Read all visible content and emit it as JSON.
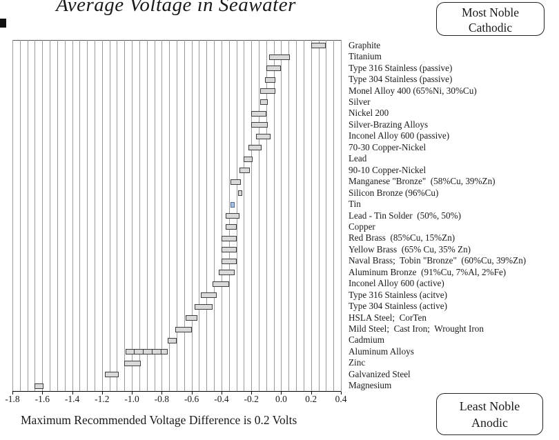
{
  "chart_data": {
    "type": "bar",
    "orientation": "horizontal-range",
    "title": "Average Voltage in Seawater",
    "unit": "Volts",
    "x_axis": {
      "min": -1.8,
      "max": 0.4,
      "grid_step": 0.05,
      "tick_labels": [
        "-1.8",
        "-1.6",
        "-1.4",
        "-1.2",
        "-1.0",
        "-0.8",
        "-0.6",
        "-0.4",
        "-0.2",
        "0.0",
        "0.2",
        "0.4"
      ]
    },
    "colors": {
      "bar_fill": "#d9d9d9",
      "bar_border": "#3c3c3c",
      "highlight_fill": "#a9c0dd",
      "highlight_border": "#4a6a9a",
      "grid": "#9b9b9b",
      "axis": "#000000"
    },
    "bars": [
      {
        "label": "Graphite",
        "range": [
          0.2,
          0.3
        ]
      },
      {
        "label": "Titanium",
        "range": [
          -0.08,
          0.06
        ]
      },
      {
        "label": "Type 316 Stainless (passive)",
        "range": [
          -0.1,
          0.0
        ]
      },
      {
        "label": "Type 304 Stainless (passive)",
        "range": [
          -0.11,
          -0.04
        ]
      },
      {
        "label": "Monel Alloy 400 (65%Ni, 30%Cu)",
        "range": [
          -0.14,
          -0.04
        ]
      },
      {
        "label": "Silver",
        "range": [
          -0.14,
          -0.09
        ]
      },
      {
        "label": "Nickel 200",
        "range": [
          -0.2,
          -0.1
        ]
      },
      {
        "label": "Silver-Brazing Alloys",
        "range": [
          -0.2,
          -0.09
        ]
      },
      {
        "label": "Inconel Alloy 600 (passive)",
        "range": [
          -0.17,
          -0.07
        ]
      },
      {
        "label": "70-30 Copper-Nickel",
        "range": [
          -0.22,
          -0.13
        ]
      },
      {
        "label": "Lead",
        "range": [
          -0.25,
          -0.19
        ]
      },
      {
        "label": "90-10 Copper-Nickel",
        "range": [
          -0.28,
          -0.21
        ]
      },
      {
        "label": "Manganese \"Bronze\"  (58%Cu, 39%Zn)",
        "range": [
          -0.34,
          -0.27
        ]
      },
      {
        "label": "Silicon Bronze (96%Cu)",
        "range": [
          -0.29,
          -0.26
        ]
      },
      {
        "label": "Tin",
        "range": [
          -0.34,
          -0.31
        ],
        "highlighted": true
      },
      {
        "label": "Lead - Tin Solder  (50%, 50%)",
        "range": [
          -0.37,
          -0.28
        ]
      },
      {
        "label": "Copper",
        "range": [
          -0.37,
          -0.3
        ]
      },
      {
        "label": "Red Brass  (85%Cu, 15%Zn)",
        "range": [
          -0.4,
          -0.3
        ]
      },
      {
        "label": "Yellow Brass  (65% Cu, 35% Zn)",
        "range": [
          -0.4,
          -0.3
        ]
      },
      {
        "label": "Naval Brass;  Tobin \"Bronze\"  (60%Cu, 39%Zn)",
        "range": [
          -0.4,
          -0.3
        ]
      },
      {
        "label": "Aluminum Bronze  (91%Cu, 7%Al, 2%Fe)",
        "range": [
          -0.42,
          -0.31
        ]
      },
      {
        "label": "Inconel Alloy 600 (active)",
        "range": [
          -0.46,
          -0.35
        ]
      },
      {
        "label": "Type 316 Stainless (acitve)",
        "range": [
          -0.54,
          -0.43
        ]
      },
      {
        "label": "Type 304 Stainless (active)",
        "range": [
          -0.58,
          -0.46
        ]
      },
      {
        "label": "HSLA Steel;  CorTen",
        "range": [
          -0.64,
          -0.56
        ]
      },
      {
        "label": "Mild Steel;  Cast Iron;  Wrought Iron",
        "range": [
          -0.71,
          -0.6
        ]
      },
      {
        "label": "Cadmium",
        "range": [
          -0.76,
          -0.7
        ]
      },
      {
        "label": "Aluminum Alloys",
        "range": [
          -1.04,
          -0.76
        ],
        "sub_ticks": [
          -0.99,
          -0.93,
          -0.87,
          -0.81
        ]
      },
      {
        "label": "Zinc",
        "range": [
          -1.05,
          -0.94
        ]
      },
      {
        "label": "Galvanized Steel",
        "range": [
          -1.18,
          -1.09
        ]
      },
      {
        "label": "Magnesium",
        "range": [
          -1.65,
          -1.59
        ]
      }
    ]
  },
  "annotations": {
    "top_box": {
      "line1": "Most Noble",
      "line2": "Cathodic"
    },
    "bottom_box": {
      "line1": "Least Noble",
      "line2": "Anodic"
    },
    "footer": "Maximum Recommended Voltage Difference is 0.2 Volts"
  }
}
